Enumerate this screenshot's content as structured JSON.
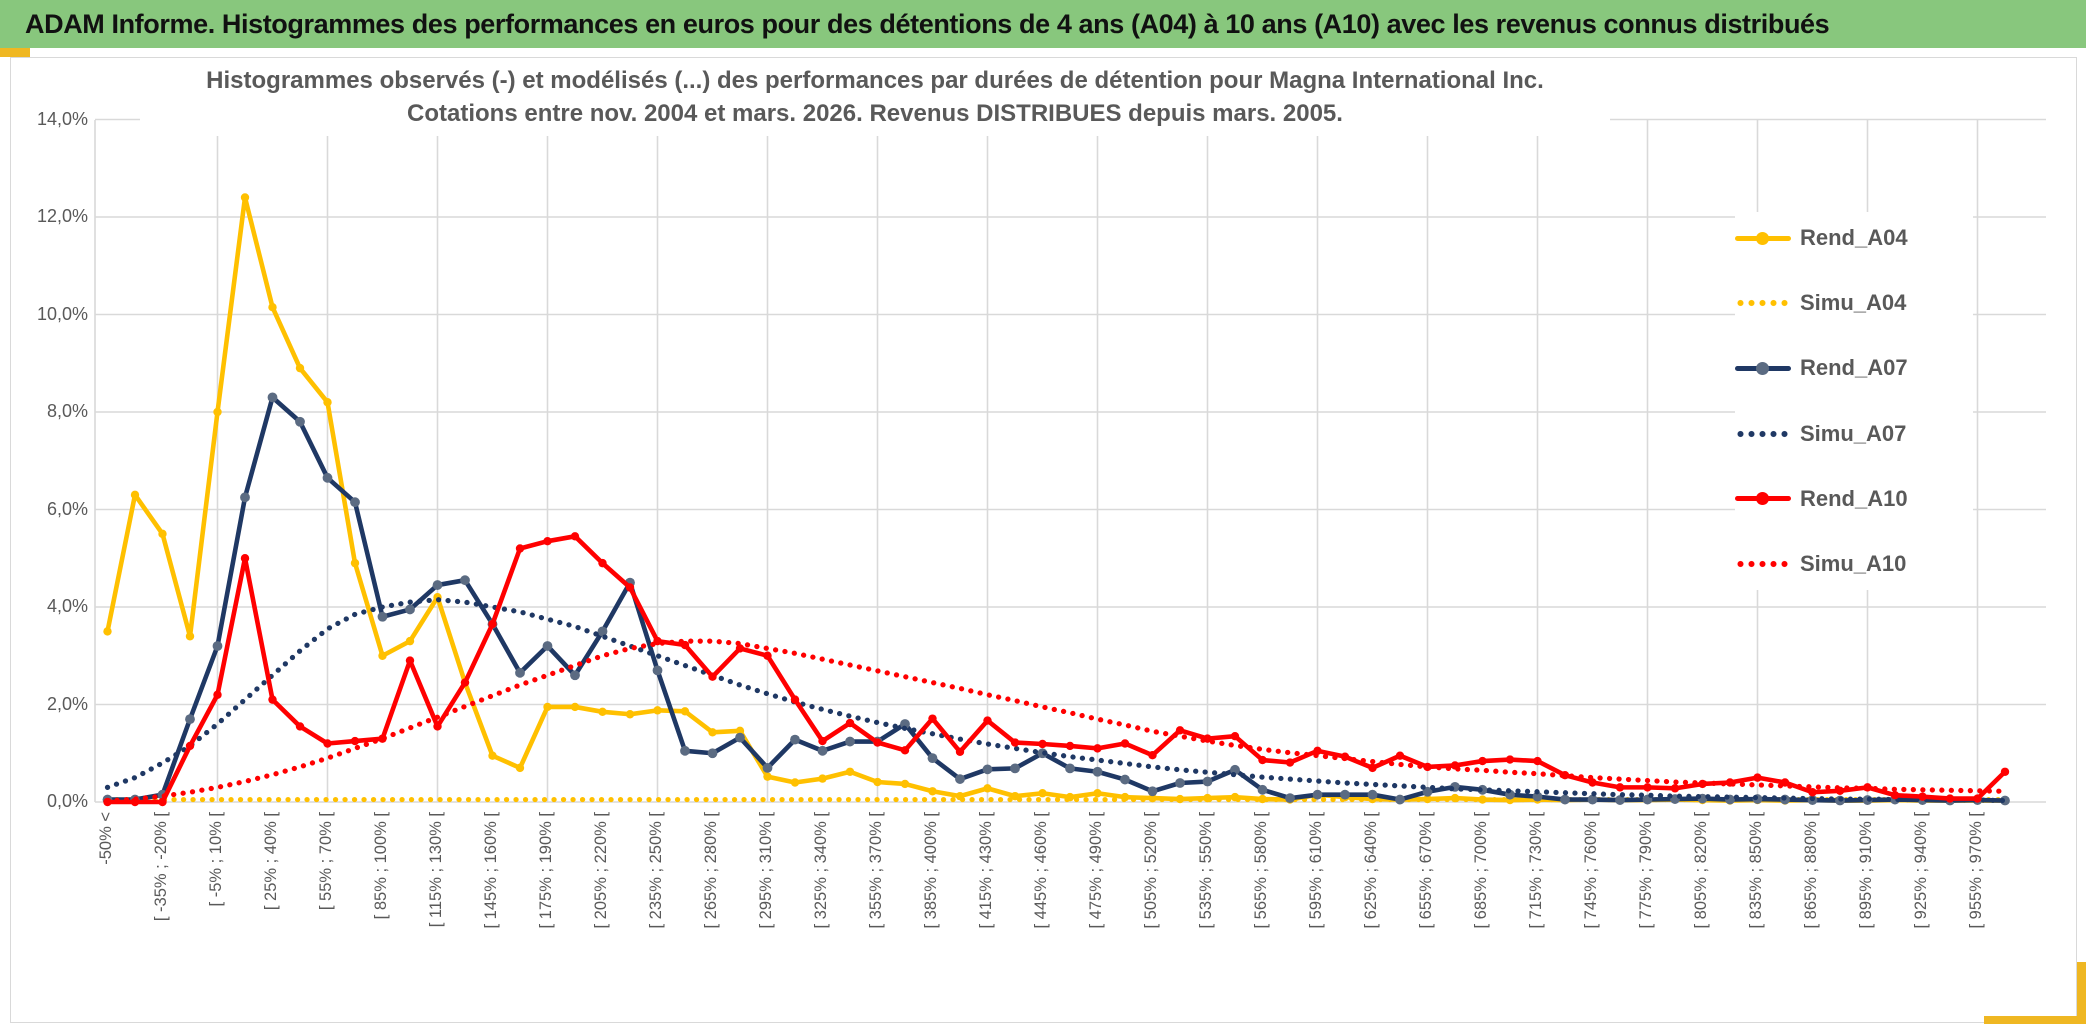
{
  "header": {
    "title": "ADAM Informe. Histogrammes des performances en euros pour des détentions de 4 ans (A04) à 10 ans (A10) avec les revenus connus distribués"
  },
  "chart_data": {
    "type": "line",
    "title": "Histogrammes observés (-) et modélisés (...) des performances par durées de détention pour Magna International Inc.",
    "subtitle": "Cotations entre nov. 2004 et mars. 2026. Revenus DISTRIBUES depuis mars. 2005.",
    "ylim": [
      0,
      14
    ],
    "ytick_step_pct": 2,
    "ytick_labels": [
      "0,0%",
      "2,0%",
      "4,0%",
      "6,0%",
      "8,0%",
      "10,0%",
      "12,0%",
      "14,0%"
    ],
    "grid": true,
    "legend_position": "right",
    "n_bins": 70,
    "bin_width_pct": 15,
    "x_label_every": 2,
    "x_labels": [
      "-50% <",
      "[ -35% ; -20% [",
      "[ -5% ; 10% [",
      "[ 25% ; 40% [",
      "[ 55% ; 70% [",
      "[ 85% ; 100% [",
      "[ 115% ; 130% [",
      "[ 145% ; 160% [",
      "[ 175% ; 190% [",
      "[ 205% ; 220% [",
      "[ 235% ; 250% [",
      "[ 265% ; 280% [",
      "[ 295% ; 310% [",
      "[ 325% ; 340% [",
      "[ 355% ; 370% [",
      "[ 385% ; 400% [",
      "[ 415% ; 430% [",
      "[ 445% ; 460% [",
      "[ 475% ; 490% [",
      "[ 505% ; 520% [",
      "[ 535% ; 550% [",
      "[ 565% ; 580% [",
      "[ 595% ; 610% [",
      "[ 625% ; 640% [",
      "[ 655% ; 670% [",
      "[ 685% ; 700% [",
      "[ 715% ; 730% [",
      "[ 745% ; 760% [",
      "[ 775% ; 790% [",
      "[ 805% ; 820% [",
      "[ 835% ; 850% [",
      "[ 865% ; 880% [",
      "[ 895% ; 910% [",
      "[ 925% ; 940% [",
      "[ 955% ; 970% ["
    ],
    "series": [
      {
        "name": "Rend_A04",
        "style": "solid",
        "color": "#FFC000",
        "marker_color": "#FFC000",
        "values": [
          3.5,
          6.3,
          5.5,
          3.4,
          8.0,
          12.4,
          10.15,
          8.9,
          8.2,
          4.9,
          3.0,
          3.3,
          4.2,
          2.45,
          0.95,
          0.7,
          1.95,
          1.95,
          1.85,
          1.8,
          1.88,
          1.86,
          1.43,
          1.46,
          0.52,
          0.4,
          0.48,
          0.62,
          0.41,
          0.37,
          0.22,
          0.12,
          0.28,
          0.12,
          0.18,
          0.1,
          0.18,
          0.1,
          0.08,
          0.06,
          0.08,
          0.1,
          0.06,
          0.05,
          0.15,
          0.1,
          0.06,
          0.05,
          0.06,
          0.08,
          0.05,
          0.04,
          0.05,
          0.04,
          0.05,
          0.04,
          0.04,
          0.05,
          0.04,
          0.03,
          0.04,
          0.03,
          0.04,
          0.03,
          0.03,
          0.04,
          0.03,
          0.03,
          0.03,
          0.03
        ]
      },
      {
        "name": "Simu_A04",
        "style": "dotted",
        "color": "#FFC000",
        "values": [
          0.05,
          0.05,
          0.05,
          0.05,
          0.05,
          0.05,
          0.05,
          0.05,
          0.05,
          0.05,
          0.05,
          0.05,
          0.05,
          0.05,
          0.05,
          0.05,
          0.05,
          0.05,
          0.05,
          0.05,
          0.05,
          0.05,
          0.05,
          0.05,
          0.05,
          0.05,
          0.05,
          0.05,
          0.05,
          0.05,
          0.05,
          0.05,
          0.05,
          0.05,
          0.05,
          0.05,
          0.05,
          0.05,
          0.05,
          0.05,
          0.05,
          0.05,
          0.05,
          0.05,
          0.05,
          0.05,
          0.05,
          0.05,
          0.05,
          0.05,
          0.05,
          0.05,
          0.05,
          0.05,
          0.05,
          0.05,
          0.05,
          0.05,
          0.05,
          0.05,
          0.05,
          0.05,
          0.05,
          0.05,
          0.05,
          0.05,
          0.05,
          0.05,
          0.05,
          0.05
        ]
      },
      {
        "name": "Rend_A07",
        "style": "solid",
        "color": "#1F3864",
        "marker_color": "#5B6B82",
        "values": [
          0.05,
          0.05,
          0.15,
          1.7,
          3.2,
          6.25,
          8.3,
          7.8,
          6.65,
          6.15,
          3.8,
          3.95,
          4.45,
          4.55,
          3.65,
          2.65,
          3.2,
          2.6,
          3.5,
          4.5,
          2.7,
          1.05,
          1.0,
          1.32,
          0.7,
          1.28,
          1.05,
          1.24,
          1.24,
          1.6,
          0.9,
          0.47,
          0.67,
          0.69,
          1.0,
          0.69,
          0.62,
          0.46,
          0.22,
          0.39,
          0.42,
          0.66,
          0.25,
          0.08,
          0.15,
          0.15,
          0.15,
          0.05,
          0.21,
          0.31,
          0.25,
          0.15,
          0.11,
          0.05,
          0.05,
          0.04,
          0.05,
          0.06,
          0.07,
          0.05,
          0.06,
          0.05,
          0.04,
          0.03,
          0.04,
          0.05,
          0.04,
          0.03,
          0.04,
          0.03
        ]
      },
      {
        "name": "Simu_A07",
        "style": "dotted",
        "color": "#1F3864",
        "values": [
          0.3,
          0.5,
          0.8,
          1.15,
          1.6,
          2.1,
          2.6,
          3.1,
          3.55,
          3.85,
          4.0,
          4.1,
          4.15,
          4.1,
          4.0,
          3.9,
          3.75,
          3.6,
          3.4,
          3.2,
          3.0,
          2.8,
          2.6,
          2.4,
          2.22,
          2.05,
          1.9,
          1.76,
          1.63,
          1.51,
          1.4,
          1.29,
          1.19,
          1.1,
          1.01,
          0.93,
          0.86,
          0.79,
          0.72,
          0.66,
          0.61,
          0.56,
          0.51,
          0.47,
          0.43,
          0.39,
          0.36,
          0.33,
          0.3,
          0.27,
          0.25,
          0.23,
          0.21,
          0.19,
          0.17,
          0.15,
          0.14,
          0.12,
          0.11,
          0.1,
          0.09,
          0.08,
          0.07,
          0.06,
          0.06,
          0.05,
          0.05,
          0.04,
          0.04,
          0.03
        ]
      },
      {
        "name": "Rend_A10",
        "style": "solid",
        "color": "#FF0000",
        "marker_color": "#FF0000",
        "values": [
          0,
          0,
          0,
          1.15,
          2.2,
          5.0,
          2.1,
          1.55,
          1.2,
          1.25,
          1.3,
          2.9,
          1.55,
          2.45,
          3.65,
          5.2,
          5.35,
          5.45,
          4.9,
          4.4,
          3.3,
          3.22,
          2.57,
          3.15,
          3.0,
          2.1,
          1.25,
          1.62,
          1.22,
          1.06,
          1.71,
          1.03,
          1.67,
          1.22,
          1.19,
          1.15,
          1.1,
          1.2,
          0.96,
          1.47,
          1.3,
          1.35,
          0.86,
          0.81,
          1.05,
          0.93,
          0.7,
          0.95,
          0.72,
          0.75,
          0.84,
          0.87,
          0.84,
          0.55,
          0.4,
          0.3,
          0.3,
          0.28,
          0.37,
          0.4,
          0.5,
          0.4,
          0.2,
          0.23,
          0.3,
          0.14,
          0.11,
          0.07,
          0.07,
          0.62
        ]
      },
      {
        "name": "Simu_A10",
        "style": "dotted",
        "color": "#FF0000",
        "values": [
          0.02,
          0.06,
          0.12,
          0.2,
          0.3,
          0.42,
          0.56,
          0.72,
          0.9,
          1.1,
          1.3,
          1.52,
          1.74,
          1.96,
          2.18,
          2.4,
          2.6,
          2.8,
          3.0,
          3.15,
          3.25,
          3.3,
          3.3,
          3.25,
          3.15,
          3.05,
          2.93,
          2.81,
          2.69,
          2.57,
          2.45,
          2.33,
          2.2,
          2.08,
          1.95,
          1.83,
          1.7,
          1.58,
          1.45,
          1.35,
          1.25,
          1.16,
          1.08,
          1.01,
          0.95,
          0.89,
          0.83,
          0.77,
          0.72,
          0.68,
          0.65,
          0.61,
          0.58,
          0.54,
          0.5,
          0.47,
          0.44,
          0.41,
          0.39,
          0.37,
          0.35,
          0.33,
          0.31,
          0.29,
          0.28,
          0.26,
          0.25,
          0.24,
          0.23,
          0.22
        ]
      }
    ],
    "colors": {
      "grid": "#D9D9D9",
      "axis_text": "#595959",
      "title_text": "#595959",
      "header_bg": "#88C77D",
      "accent_gold": "#EFB722"
    }
  }
}
